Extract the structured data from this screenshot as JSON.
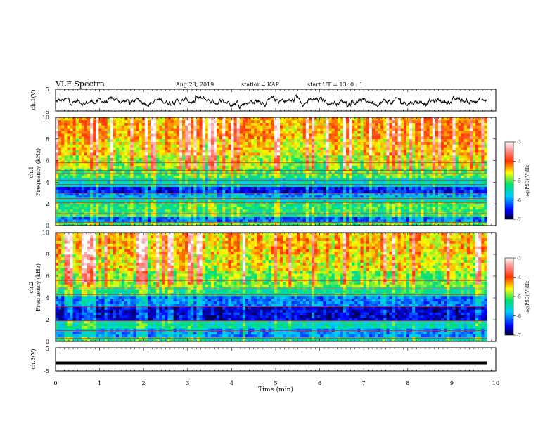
{
  "header": {
    "title": "VLF Spectra",
    "date": "Aug.23, 2019",
    "station": "station= KAP",
    "start": "start  UT  =   13: 0  : 1"
  },
  "chart_data": [
    {
      "type": "line",
      "panel": "ch1-waveform",
      "ylabel": "ch.1(V)",
      "ylim": [
        -5,
        5
      ],
      "ytick_labels": [
        "5",
        "-5"
      ],
      "xlim": [
        0,
        10
      ],
      "note_values": "continuous noisy waveform oscillating mostly between about -3 and +2 V from t=0 to t=9.8 min"
    },
    {
      "type": "heatmap",
      "panel": "ch1-spectrogram",
      "ylabel_channel": "ch.1",
      "ylabel": "Frequency  (kHz)",
      "ylim": [
        0,
        10
      ],
      "ytick_labels": [
        "0",
        "2",
        "4",
        "6",
        "8",
        "10"
      ],
      "xlim": [
        0,
        10
      ],
      "data_extent_min": 9.8,
      "colorbar": {
        "label": "log(PSD)(V²/Hz)",
        "range": [
          -7,
          -3
        ],
        "tick_labels": [
          "-3",
          "-4",
          "-5",
          "-6",
          "-7"
        ]
      },
      "bands": [
        {
          "f": [
            0.0,
            0.35
          ],
          "level": -5.1
        },
        {
          "f": [
            0.35,
            0.8
          ],
          "level": -6.2
        },
        {
          "f": [
            0.8,
            2.2
          ],
          "level": -5.2
        },
        {
          "f": [
            2.2,
            2.6
          ],
          "level": -5.6
        },
        {
          "f": [
            2.6,
            3.0
          ],
          "level": -6.0
        },
        {
          "f": [
            3.0,
            3.6
          ],
          "level": -6.5
        },
        {
          "f": [
            3.6,
            4.4
          ],
          "level": -5.6
        },
        {
          "f": [
            4.4,
            5.3
          ],
          "level": -5.1
        },
        {
          "f": [
            5.3,
            6.5
          ],
          "level": -4.8
        },
        {
          "f": [
            6.5,
            8.0
          ],
          "level": -4.5
        },
        {
          "f": [
            8.0,
            10.0
          ],
          "level": -4.3
        }
      ],
      "lines_khz": [
        0.3,
        1.1,
        2.1,
        2.5,
        3.0,
        3.8,
        4.2,
        4.8,
        5.1,
        5.8
      ]
    },
    {
      "type": "heatmap",
      "panel": "ch2-spectrogram",
      "ylabel_channel": "ch.2",
      "ylabel": "Frequency  (kHz)",
      "ylim": [
        0,
        10
      ],
      "ytick_labels": [
        "0",
        "2",
        "4",
        "6",
        "8",
        "10"
      ],
      "xlim": [
        0,
        10
      ],
      "data_extent_min": 9.8,
      "colorbar": {
        "label": "log(PSD)(V²/Hz)",
        "range": [
          -7,
          -3
        ],
        "tick_labels": [
          "-3",
          "-4",
          "-5",
          "-6",
          "-7"
        ]
      },
      "bands": [
        {
          "f": [
            0.0,
            0.4
          ],
          "level": -5.4
        },
        {
          "f": [
            0.4,
            1.2
          ],
          "level": -6.0
        },
        {
          "f": [
            1.2,
            1.9
          ],
          "level": -5.5
        },
        {
          "f": [
            1.9,
            3.2
          ],
          "level": -6.6
        },
        {
          "f": [
            3.2,
            4.2
          ],
          "level": -6.1
        },
        {
          "f": [
            4.2,
            5.0
          ],
          "level": -5.3
        },
        {
          "f": [
            5.0,
            6.5
          ],
          "level": -4.9
        },
        {
          "f": [
            6.5,
            8.0
          ],
          "level": -4.6
        },
        {
          "f": [
            8.0,
            10.0
          ],
          "level": -4.4
        }
      ],
      "lines_khz": [
        0.3,
        1.0,
        1.9,
        3.2,
        4.3,
        4.8,
        5.6
      ]
    },
    {
      "type": "line",
      "panel": "ch3-waveform",
      "ylabel": "ch.3(V)",
      "ylim": [
        -5,
        5
      ],
      "ytick_labels": [
        "5",
        "-5"
      ],
      "xlim": [
        0,
        10
      ],
      "x": [
        0,
        9.8
      ],
      "y": [
        -1.5,
        -1.5
      ]
    }
  ],
  "xaxis": {
    "label": "Time  (min)",
    "tick_labels": [
      "0",
      "1",
      "2",
      "3",
      "4",
      "5",
      "6",
      "7",
      "8",
      "9",
      "10"
    ]
  }
}
